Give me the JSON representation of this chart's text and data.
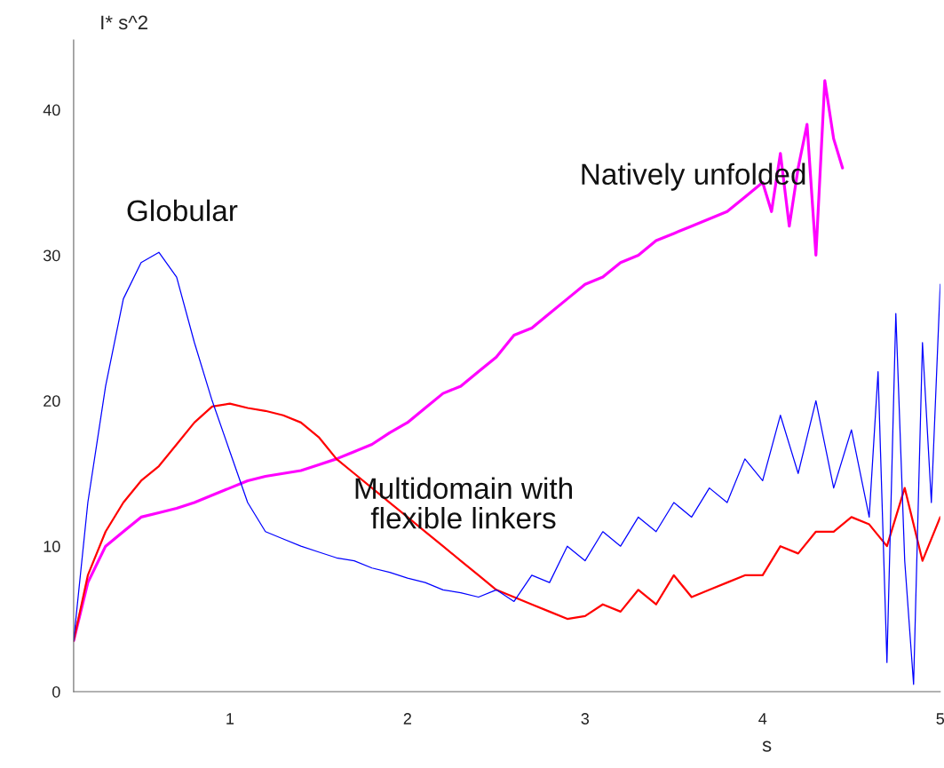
{
  "chart_data": {
    "type": "line",
    "xlabel": "s",
    "ylabel": "I* s^2",
    "xlim": [
      0.12,
      5.0
    ],
    "ylim": [
      0,
      44.8
    ],
    "xticks": [
      1,
      2,
      3,
      4,
      5
    ],
    "yticks": [
      0,
      10,
      20,
      30,
      40
    ],
    "grid": false,
    "legend": false,
    "marker": "none",
    "line_style": "solid",
    "series": [
      {
        "color": "#ff00ff",
        "x": [
          0.12,
          0.2,
          0.3,
          0.4,
          0.5,
          0.6,
          0.7,
          0.8,
          0.9,
          1.0,
          1.1,
          1.2,
          1.3,
          1.4,
          1.5,
          1.6,
          1.7,
          1.8,
          1.9,
          2.0,
          2.1,
          2.2,
          2.3,
          2.4,
          2.5,
          2.6,
          2.7,
          2.8,
          2.9,
          3.0,
          3.1,
          3.2,
          3.3,
          3.4,
          3.5,
          3.6,
          3.7,
          3.8,
          3.9,
          4.0,
          4.05,
          4.1,
          4.15,
          4.2,
          4.25,
          4.3,
          4.35,
          4.4,
          4.45
        ],
        "values": [
          3.5,
          7.5,
          10,
          11,
          12,
          12.3,
          12.6,
          13,
          13.5,
          14,
          14.5,
          14.8,
          15,
          15.2,
          15.6,
          16,
          16.5,
          17,
          17.8,
          18.5,
          19.5,
          20.5,
          21,
          22,
          23,
          24.5,
          25,
          26,
          27,
          28,
          28.5,
          29.5,
          30,
          31,
          31.5,
          32,
          32.5,
          33,
          34,
          35,
          33,
          37,
          32,
          36,
          39,
          30,
          42,
          38,
          36
        ]
      },
      {
        "color": "#ff0000",
        "x": [
          0.12,
          0.2,
          0.3,
          0.4,
          0.5,
          0.6,
          0.7,
          0.8,
          0.9,
          1.0,
          1.1,
          1.2,
          1.3,
          1.4,
          1.5,
          1.6,
          1.7,
          1.8,
          1.9,
          2.0,
          2.1,
          2.2,
          2.3,
          2.4,
          2.5,
          2.6,
          2.7,
          2.8,
          2.9,
          3.0,
          3.1,
          3.2,
          3.3,
          3.4,
          3.5,
          3.6,
          3.7,
          3.8,
          3.9,
          4.0,
          4.1,
          4.2,
          4.3,
          4.4,
          4.5,
          4.6,
          4.7,
          4.8,
          4.9,
          5.0
        ],
        "values": [
          3.5,
          8,
          11,
          13,
          14.5,
          15.5,
          17,
          18.5,
          19.6,
          19.8,
          19.5,
          19.3,
          19,
          18.5,
          17.5,
          16,
          15,
          14,
          13,
          12,
          11,
          10,
          9,
          8,
          7,
          6.5,
          6,
          5.5,
          5,
          5.2,
          6,
          5.5,
          7,
          6,
          8,
          6.5,
          7,
          7.5,
          8,
          8,
          10,
          9.5,
          11,
          11,
          12,
          11.5,
          10,
          14,
          9,
          12
        ]
      },
      {
        "color": "#0000ff",
        "x": [
          0.12,
          0.2,
          0.3,
          0.4,
          0.5,
          0.6,
          0.7,
          0.8,
          0.9,
          1.0,
          1.1,
          1.2,
          1.3,
          1.4,
          1.5,
          1.6,
          1.7,
          1.8,
          1.9,
          2.0,
          2.1,
          2.2,
          2.3,
          2.4,
          2.5,
          2.6,
          2.7,
          2.8,
          2.9,
          3.0,
          3.1,
          3.2,
          3.3,
          3.4,
          3.5,
          3.6,
          3.7,
          3.8,
          3.9,
          4.0,
          4.1,
          4.2,
          4.3,
          4.4,
          4.5,
          4.6,
          4.65,
          4.7,
          4.75,
          4.8,
          4.85,
          4.9,
          4.95,
          5.0
        ],
        "values": [
          3.5,
          13,
          21,
          27,
          29.5,
          30.2,
          28.5,
          24,
          20,
          16.5,
          13,
          11,
          10.5,
          10,
          9.6,
          9.2,
          9,
          8.5,
          8.2,
          7.8,
          7.5,
          7,
          6.8,
          6.5,
          7,
          6.2,
          8,
          7.5,
          10,
          9,
          11,
          10,
          12,
          11,
          13,
          12,
          14,
          13,
          16,
          14.5,
          19,
          15,
          20,
          14,
          18,
          12,
          22,
          2,
          26,
          9,
          0.5,
          24,
          13,
          28
        ]
      }
    ],
    "annotations": [
      "Globular",
      "Natively unfolded",
      "Multidomain with\nflexible linkers"
    ]
  }
}
